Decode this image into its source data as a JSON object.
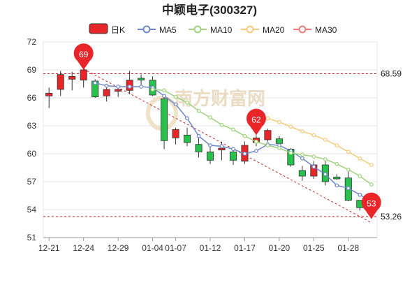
{
  "chart_data": {
    "type": "candlestick",
    "title": "中颖电子(300327)",
    "legend": [
      {
        "label": "日K",
        "color": "#e8262a",
        "kind": "candle"
      },
      {
        "label": "MA5",
        "color": "#6f86c9",
        "kind": "line"
      },
      {
        "label": "MA10",
        "color": "#9fd37d",
        "kind": "line"
      },
      {
        "label": "MA20",
        "color": "#f5ca78",
        "kind": "line"
      },
      {
        "label": "MA30",
        "color": "#ec7b7b",
        "kind": "line"
      }
    ],
    "ylim": [
      51,
      72
    ],
    "y_ticks": [
      51,
      54,
      57,
      60,
      63,
      66,
      69,
      72
    ],
    "x_tick_labels": [
      "12-21",
      "12-24",
      "12-29",
      "01-04",
      "01-07",
      "01-12",
      "01-17",
      "01-20",
      "01-25",
      "01-28"
    ],
    "x_tick_index": [
      0,
      3,
      6,
      9,
      11,
      14,
      17,
      20,
      23,
      26
    ],
    "candles": [
      {
        "o": 66.2,
        "c": 66.5,
        "h": 67.1,
        "l": 64.9
      },
      {
        "o": 66.9,
        "c": 68.5,
        "h": 68.9,
        "l": 66.2
      },
      {
        "o": 68.0,
        "c": 68.3,
        "h": 68.8,
        "l": 66.8
      },
      {
        "o": 67.9,
        "c": 69.0,
        "h": 69.1,
        "l": 67.1
      },
      {
        "o": 67.8,
        "c": 66.1,
        "h": 68.0,
        "l": 66.0
      },
      {
        "o": 66.2,
        "c": 66.9,
        "h": 67.2,
        "l": 65.6
      },
      {
        "o": 66.7,
        "c": 66.9,
        "h": 67.3,
        "l": 66.1
      },
      {
        "o": 66.8,
        "c": 67.9,
        "h": 68.9,
        "l": 66.4
      },
      {
        "o": 68.1,
        "c": 67.9,
        "h": 68.5,
        "l": 67.2
      },
      {
        "o": 67.9,
        "c": 66.3,
        "h": 68.3,
        "l": 66.2
      },
      {
        "o": 65.9,
        "c": 61.4,
        "h": 66.2,
        "l": 60.5
      },
      {
        "o": 61.7,
        "c": 62.6,
        "h": 62.8,
        "l": 61.0
      },
      {
        "o": 62.0,
        "c": 61.2,
        "h": 62.8,
        "l": 60.8
      },
      {
        "o": 61.0,
        "c": 60.2,
        "h": 61.9,
        "l": 59.6
      },
      {
        "o": 60.2,
        "c": 59.3,
        "h": 60.8,
        "l": 58.9
      },
      {
        "o": 60.4,
        "c": 60.6,
        "h": 61.3,
        "l": 59.3
      },
      {
        "o": 60.2,
        "c": 59.3,
        "h": 60.5,
        "l": 58.8
      },
      {
        "o": 59.2,
        "c": 60.9,
        "h": 61.3,
        "l": 58.9
      },
      {
        "o": 61.2,
        "c": 61.7,
        "h": 62.0,
        "l": 60.8
      },
      {
        "o": 61.5,
        "c": 62.5,
        "h": 62.7,
        "l": 61.3
      },
      {
        "o": 61.6,
        "c": 61.1,
        "h": 61.9,
        "l": 60.6
      },
      {
        "o": 60.5,
        "c": 58.8,
        "h": 60.6,
        "l": 58.6
      },
      {
        "o": 58.2,
        "c": 57.6,
        "h": 58.7,
        "l": 57.1
      },
      {
        "o": 57.6,
        "c": 58.8,
        "h": 59.2,
        "l": 57.3
      },
      {
        "o": 58.8,
        "c": 57.0,
        "h": 59.4,
        "l": 56.6
      },
      {
        "o": 57.5,
        "c": 57.3,
        "h": 57.8,
        "l": 57.2
      },
      {
        "o": 57.4,
        "c": 55.0,
        "h": 58.2,
        "l": 54.9
      },
      {
        "o": 55.0,
        "c": 54.2,
        "h": 55.0,
        "l": 53.9
      },
      {
        "o": 54.6,
        "c": 54.7,
        "h": 55.3,
        "l": 54.1
      }
    ],
    "ma5": [
      null,
      null,
      null,
      null,
      67.6,
      67.3,
      67.2,
      67.2,
      67.2,
      67.1,
      66.2,
      65.3,
      63.8,
      61.9,
      60.9,
      60.8,
      60.5,
      60.0,
      60.3,
      61.0,
      60.9,
      60.3,
      59.5,
      58.6,
      57.8,
      56.6,
      56.3,
      55.6,
      54.9
    ],
    "ma10": [
      null,
      null,
      null,
      null,
      null,
      null,
      null,
      null,
      null,
      66.9,
      66.8,
      66.1,
      65.5,
      64.6,
      63.9,
      63.1,
      62.6,
      61.9,
      61.3,
      60.9,
      60.6,
      60.1,
      59.9,
      59.7,
      59.4,
      58.9,
      58.3,
      57.6,
      56.7
    ],
    "ma20": [
      null,
      null,
      null,
      null,
      null,
      null,
      null,
      null,
      null,
      null,
      null,
      null,
      null,
      null,
      null,
      null,
      null,
      null,
      null,
      63.8,
      63.4,
      62.9,
      62.4,
      62.0,
      61.5,
      60.9,
      60.2,
      59.5,
      58.8
    ],
    "ma30": [],
    "reference_lines": [
      {
        "value": 68.59,
        "label": "68.59"
      },
      {
        "value": 53.26,
        "label": "53.26"
      }
    ],
    "markers": [
      {
        "label": "69",
        "index": 3,
        "value": 69.0
      },
      {
        "label": "62",
        "index": 18,
        "value": 62.0
      },
      {
        "label": "53",
        "index": 28,
        "value": 53.0
      }
    ],
    "trendline": {
      "from": {
        "index": 3,
        "value": 69.1
      },
      "to": {
        "index": 28,
        "value": 52.6
      }
    },
    "grid": true
  },
  "watermark": "南方财富网"
}
